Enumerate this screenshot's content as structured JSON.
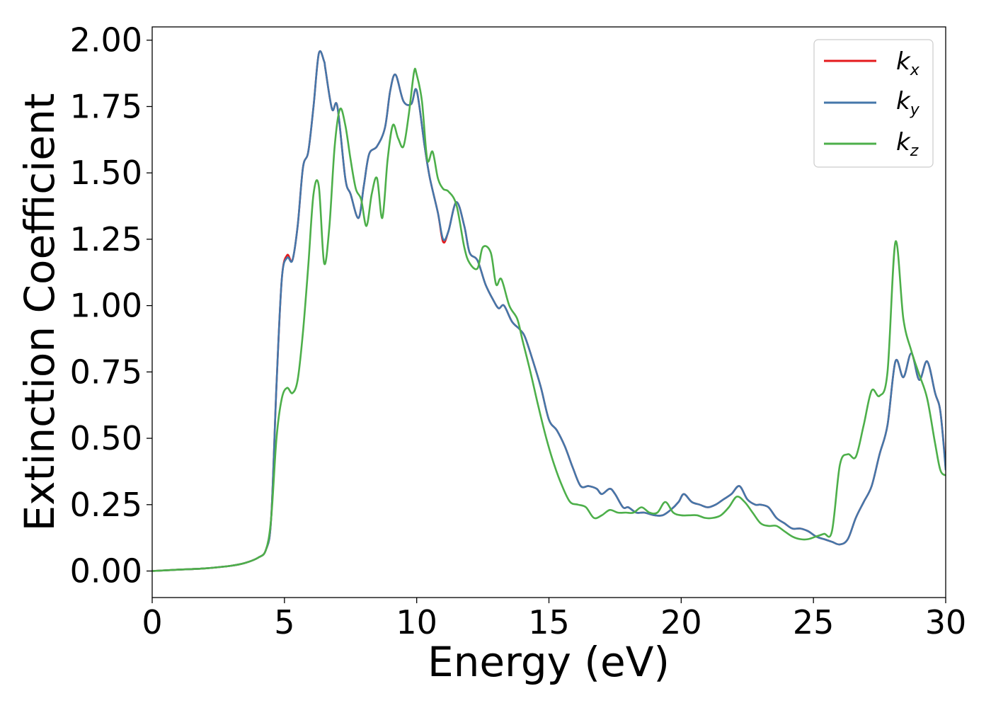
{
  "chart_data": {
    "type": "line",
    "xlabel": "Energy (eV)",
    "ylabel": "Extinction Coefficient",
    "xlim": [
      0,
      30
    ],
    "ylim": [
      -0.1,
      2.05
    ],
    "xticks": [
      "0",
      "5",
      "10",
      "15",
      "20",
      "25",
      "30"
    ],
    "yticks": [
      "0.00",
      "0.25",
      "0.50",
      "0.75",
      "1.00",
      "1.25",
      "1.50",
      "1.75",
      "2.00"
    ],
    "grid": false,
    "legend_position": "top-right",
    "series": [
      {
        "name": "k_x",
        "label_main": "k",
        "label_sub": "x",
        "color": "#e41a1c",
        "x": [
          0,
          1,
          2,
          3,
          3.5,
          4,
          4.3,
          4.5,
          4.7,
          4.9,
          5.1,
          5.3,
          5.5,
          5.7,
          5.9,
          6.1,
          6.3,
          6.5,
          6.55,
          6.8,
          7.0,
          7.3,
          7.5,
          7.8,
          8.0,
          8.2,
          8.5,
          8.8,
          9.0,
          9.2,
          9.5,
          9.8,
          10.0,
          10.3,
          10.5,
          10.8,
          11.0,
          11.2,
          11.5,
          11.8,
          12.0,
          12.3,
          12.6,
          12.9,
          13.1,
          13.3,
          13.6,
          13.9,
          14.1,
          14.4,
          14.7,
          15.0,
          15.3,
          15.6,
          15.9,
          16.2,
          16.5,
          16.8,
          17.0,
          17.3,
          17.5,
          17.8,
          18.0,
          18.3,
          18.6,
          19.0,
          19.3,
          19.6,
          19.9,
          20.1,
          20.4,
          20.7,
          21.0,
          21.3,
          21.6,
          21.9,
          22.2,
          22.5,
          22.8,
          23.0,
          23.3,
          23.6,
          23.9,
          24.2,
          24.5,
          24.8,
          25.1,
          25.4,
          25.7,
          26.0,
          26.3,
          26.6,
          26.9,
          27.2,
          27.5,
          27.8,
          28.1,
          28.4,
          28.7,
          29.0,
          29.3,
          29.6,
          29.8,
          30.0
        ],
        "values": [
          0,
          0.005,
          0.01,
          0.02,
          0.03,
          0.05,
          0.08,
          0.2,
          0.7,
          1.1,
          1.19,
          1.17,
          1.3,
          1.52,
          1.58,
          1.75,
          1.95,
          1.92,
          1.89,
          1.74,
          1.75,
          1.48,
          1.42,
          1.33,
          1.45,
          1.57,
          1.6,
          1.67,
          1.81,
          1.87,
          1.77,
          1.76,
          1.81,
          1.6,
          1.48,
          1.35,
          1.24,
          1.28,
          1.39,
          1.3,
          1.2,
          1.17,
          1.08,
          1.02,
          0.99,
          1.0,
          0.94,
          0.91,
          0.88,
          0.79,
          0.69,
          0.57,
          0.53,
          0.47,
          0.39,
          0.32,
          0.32,
          0.31,
          0.29,
          0.31,
          0.29,
          0.24,
          0.24,
          0.22,
          0.22,
          0.21,
          0.21,
          0.23,
          0.26,
          0.29,
          0.26,
          0.25,
          0.24,
          0.25,
          0.27,
          0.29,
          0.32,
          0.27,
          0.25,
          0.25,
          0.24,
          0.2,
          0.18,
          0.16,
          0.16,
          0.15,
          0.13,
          0.12,
          0.11,
          0.1,
          0.12,
          0.2,
          0.26,
          0.32,
          0.44,
          0.55,
          0.79,
          0.73,
          0.82,
          0.72,
          0.79,
          0.67,
          0.6,
          0.39
        ]
      },
      {
        "name": "k_y",
        "label_main": "k",
        "label_sub": "y",
        "color": "#4477aa",
        "x": [
          0,
          1,
          2,
          3,
          3.5,
          4,
          4.3,
          4.5,
          4.7,
          4.9,
          5.1,
          5.3,
          5.5,
          5.7,
          5.9,
          6.1,
          6.3,
          6.5,
          6.55,
          6.8,
          7.0,
          7.3,
          7.5,
          7.8,
          8.0,
          8.2,
          8.5,
          8.8,
          9.0,
          9.2,
          9.5,
          9.8,
          10.0,
          10.3,
          10.5,
          10.8,
          11.0,
          11.2,
          11.5,
          11.8,
          12.0,
          12.3,
          12.6,
          12.9,
          13.1,
          13.3,
          13.6,
          13.9,
          14.1,
          14.4,
          14.7,
          15.0,
          15.3,
          15.6,
          15.9,
          16.2,
          16.5,
          16.8,
          17.0,
          17.3,
          17.5,
          17.8,
          18.0,
          18.3,
          18.6,
          19.0,
          19.3,
          19.6,
          19.9,
          20.1,
          20.4,
          20.7,
          21.0,
          21.3,
          21.6,
          21.9,
          22.2,
          22.5,
          22.8,
          23.0,
          23.3,
          23.6,
          23.9,
          24.2,
          24.5,
          24.8,
          25.1,
          25.4,
          25.7,
          26.0,
          26.3,
          26.6,
          26.9,
          27.2,
          27.5,
          27.8,
          28.1,
          28.4,
          28.7,
          29.0,
          29.3,
          29.6,
          29.8,
          30.0
        ],
        "values": [
          0,
          0.005,
          0.01,
          0.02,
          0.03,
          0.05,
          0.08,
          0.2,
          0.7,
          1.1,
          1.18,
          1.17,
          1.3,
          1.52,
          1.58,
          1.75,
          1.95,
          1.92,
          1.89,
          1.74,
          1.75,
          1.48,
          1.42,
          1.33,
          1.45,
          1.57,
          1.6,
          1.67,
          1.81,
          1.87,
          1.77,
          1.76,
          1.81,
          1.6,
          1.48,
          1.35,
          1.25,
          1.28,
          1.39,
          1.3,
          1.2,
          1.17,
          1.08,
          1.02,
          0.99,
          1.0,
          0.94,
          0.91,
          0.88,
          0.79,
          0.69,
          0.57,
          0.53,
          0.47,
          0.39,
          0.32,
          0.32,
          0.31,
          0.29,
          0.31,
          0.29,
          0.24,
          0.24,
          0.22,
          0.22,
          0.21,
          0.21,
          0.23,
          0.26,
          0.29,
          0.26,
          0.25,
          0.24,
          0.25,
          0.27,
          0.29,
          0.32,
          0.27,
          0.25,
          0.25,
          0.24,
          0.2,
          0.18,
          0.16,
          0.16,
          0.15,
          0.13,
          0.12,
          0.11,
          0.1,
          0.12,
          0.2,
          0.26,
          0.32,
          0.44,
          0.55,
          0.79,
          0.73,
          0.82,
          0.72,
          0.79,
          0.67,
          0.6,
          0.38
        ]
      },
      {
        "name": "k_z",
        "label_main": "k",
        "label_sub": "z",
        "color": "#4daf4a",
        "x": [
          0,
          1,
          2,
          3,
          3.5,
          4,
          4.3,
          4.5,
          4.7,
          4.9,
          5.1,
          5.3,
          5.5,
          5.7,
          5.9,
          6.1,
          6.3,
          6.5,
          6.7,
          6.9,
          7.1,
          7.3,
          7.5,
          7.7,
          7.9,
          8.1,
          8.3,
          8.5,
          8.7,
          8.9,
          9.1,
          9.3,
          9.5,
          9.7,
          9.9,
          10.0,
          10.2,
          10.4,
          10.6,
          10.8,
          11.0,
          11.2,
          11.5,
          11.8,
          12.0,
          12.3,
          12.5,
          12.8,
          13.0,
          13.2,
          13.5,
          13.8,
          14.0,
          14.3,
          14.6,
          14.9,
          15.2,
          15.5,
          15.8,
          16.1,
          16.4,
          16.7,
          17.0,
          17.3,
          17.6,
          17.9,
          18.2,
          18.5,
          18.8,
          19.1,
          19.4,
          19.7,
          20.0,
          20.3,
          20.6,
          20.9,
          21.2,
          21.5,
          21.8,
          22.1,
          22.4,
          22.7,
          23.0,
          23.3,
          23.6,
          23.9,
          24.2,
          24.5,
          24.8,
          25.1,
          25.4,
          25.7,
          26.0,
          26.3,
          26.6,
          26.9,
          27.2,
          27.5,
          27.8,
          28.1,
          28.4,
          28.7,
          29.0,
          29.3,
          29.6,
          29.8,
          30.0
        ],
        "values": [
          0,
          0.005,
          0.01,
          0.02,
          0.03,
          0.05,
          0.08,
          0.2,
          0.5,
          0.65,
          0.69,
          0.67,
          0.72,
          0.9,
          1.15,
          1.42,
          1.45,
          1.16,
          1.3,
          1.6,
          1.74,
          1.68,
          1.55,
          1.44,
          1.4,
          1.3,
          1.42,
          1.48,
          1.33,
          1.55,
          1.68,
          1.63,
          1.6,
          1.72,
          1.88,
          1.87,
          1.77,
          1.55,
          1.58,
          1.48,
          1.44,
          1.43,
          1.38,
          1.22,
          1.16,
          1.14,
          1.22,
          1.2,
          1.08,
          1.1,
          1.0,
          0.95,
          0.87,
          0.75,
          0.62,
          0.5,
          0.4,
          0.32,
          0.26,
          0.25,
          0.24,
          0.2,
          0.21,
          0.23,
          0.22,
          0.22,
          0.22,
          0.24,
          0.22,
          0.22,
          0.26,
          0.22,
          0.21,
          0.21,
          0.21,
          0.2,
          0.2,
          0.21,
          0.24,
          0.28,
          0.26,
          0.22,
          0.18,
          0.17,
          0.17,
          0.15,
          0.13,
          0.12,
          0.12,
          0.13,
          0.14,
          0.15,
          0.4,
          0.44,
          0.43,
          0.55,
          0.68,
          0.66,
          0.75,
          1.24,
          0.95,
          0.83,
          0.74,
          0.65,
          0.48,
          0.38,
          0.36
        ]
      }
    ]
  }
}
